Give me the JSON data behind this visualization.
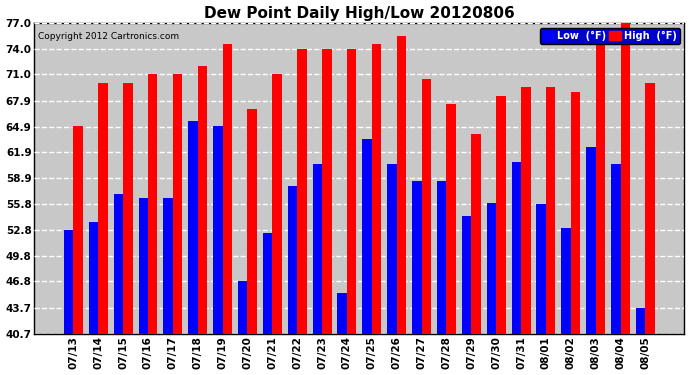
{
  "title": "Dew Point Daily High/Low 20120806",
  "copyright": "Copyright 2012 Cartronics.com",
  "categories": [
    "07/13",
    "07/14",
    "07/15",
    "07/16",
    "07/17",
    "07/18",
    "07/19",
    "07/20",
    "07/21",
    "07/22",
    "07/23",
    "07/24",
    "07/25",
    "07/26",
    "07/27",
    "07/28",
    "07/29",
    "07/30",
    "07/31",
    "08/01",
    "08/02",
    "08/03",
    "08/04",
    "08/05"
  ],
  "low_values": [
    52.8,
    53.8,
    57.0,
    56.5,
    56.5,
    65.5,
    65.0,
    46.8,
    52.5,
    58.0,
    60.5,
    45.5,
    63.5,
    60.5,
    58.5,
    58.5,
    54.5,
    56.0,
    60.8,
    55.8,
    53.0,
    62.5,
    60.5,
    43.7
  ],
  "high_values": [
    65.0,
    70.0,
    70.0,
    71.0,
    71.0,
    72.0,
    74.5,
    67.0,
    71.0,
    74.0,
    74.0,
    74.0,
    74.5,
    75.5,
    70.5,
    67.5,
    64.0,
    68.5,
    69.5,
    69.5,
    69.0,
    75.0,
    77.0,
    70.0
  ],
  "low_color": "#0000FF",
  "high_color": "#FF0000",
  "bg_color": "#FFFFFF",
  "plot_bg_color": "#C8C8C8",
  "grid_color": "#FFFFFF",
  "ylim_min": 40.7,
  "ylim_max": 77.0,
  "yticks": [
    40.7,
    43.7,
    46.8,
    49.8,
    52.8,
    55.8,
    58.9,
    61.9,
    64.9,
    67.9,
    71.0,
    74.0,
    77.0
  ],
  "legend_low_label": "Low  (°F)",
  "legend_high_label": "High  (°F)",
  "bar_width": 0.38,
  "figwidth": 6.9,
  "figheight": 3.75,
  "dpi": 100
}
